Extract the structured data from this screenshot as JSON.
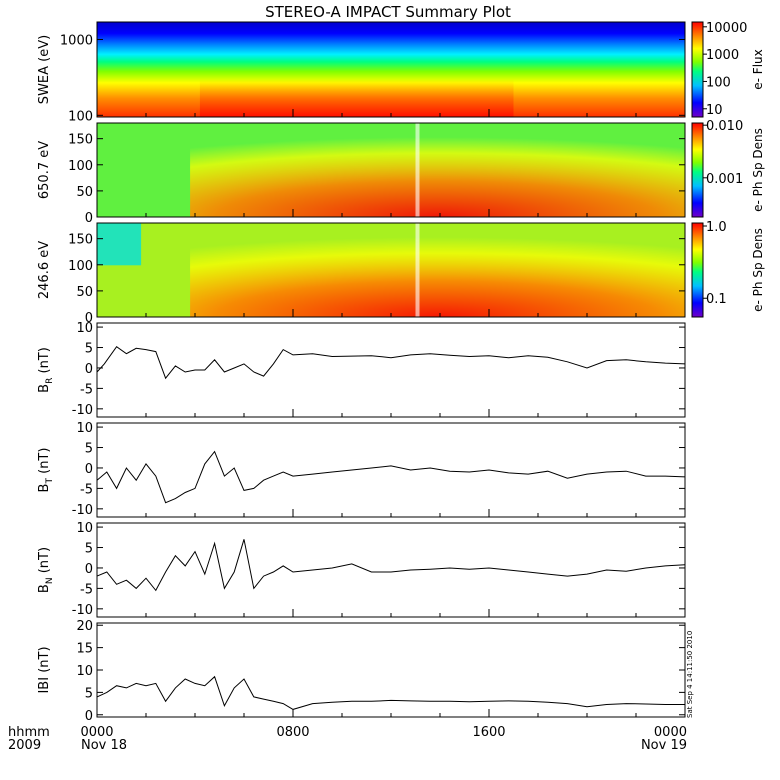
{
  "title": "STEREO-A IMPACT Summary Plot",
  "timestamp_text": "Sat Sep  4 14:11:50 2010",
  "time_axis": {
    "row1": [
      "hhmm",
      "0000",
      "0800",
      "1600",
      "0000"
    ],
    "row2": [
      "2009",
      "Nov 18",
      "Nov 19"
    ]
  },
  "colors": {
    "line": "#000000",
    "spectrogram_scale": [
      "#7000c8",
      "#0000ff",
      "#00c0ff",
      "#00ff80",
      "#80ff00",
      "#ffff00",
      "#ff8000",
      "#ff0000"
    ]
  },
  "chart_data": [
    {
      "type": "heatmap",
      "name": "swea",
      "ylabel": "SWEA (eV)",
      "yscale": "log",
      "ylim": [
        95,
        1700
      ],
      "yticks": [
        "1000",
        "100"
      ],
      "colorbar": {
        "label": "e- Flux",
        "scale": "log",
        "range": [
          5,
          15000
        ],
        "ticks": [
          "10000",
          "1000",
          "100",
          "10"
        ]
      }
    },
    {
      "type": "heatmap",
      "name": "pad_650",
      "ylabel": "650.7 eV",
      "ylim": [
        0,
        180
      ],
      "yticks": [
        "150",
        "100",
        "50",
        "0"
      ],
      "colorbar": {
        "label": "e- Ph Sp Dens",
        "scale": "log",
        "range": [
          0.00018,
          0.011
        ],
        "ticks": [
          "0.010",
          "0.001"
        ]
      }
    },
    {
      "type": "heatmap",
      "name": "pad_246",
      "ylabel": "246.6 eV",
      "ylim": [
        0,
        180
      ],
      "yticks": [
        "150",
        "100",
        "50",
        "0"
      ],
      "colorbar": {
        "label": "e- Ph Sp Dens",
        "scale": "log",
        "range": [
          0.055,
          1.1
        ],
        "ticks": [
          "1.0",
          "0.1"
        ]
      }
    },
    {
      "type": "line",
      "name": "br",
      "ylabel_main": "B",
      "ylabel_sub": "R",
      "ylabel_unit": "(nT)",
      "ylim": [
        -12,
        11
      ],
      "yticks": [
        "10",
        "5",
        "0",
        "-5",
        "-10"
      ],
      "x": [
        0,
        0.3,
        0.8,
        1.2,
        1.6,
        2.0,
        2.4,
        2.8,
        3.2,
        3.6,
        4.0,
        4.4,
        4.8,
        5.2,
        5.6,
        6.0,
        6.4,
        6.8,
        7.2,
        7.6,
        8.0,
        8.8,
        9.6,
        10.4,
        11.2,
        12.0,
        12.8,
        13.6,
        14.4,
        15.2,
        16.0,
        16.8,
        17.6,
        18.4,
        19.2,
        20.0,
        20.8,
        21.6,
        22.4,
        23.2,
        24.0
      ],
      "values": [
        -1,
        1,
        5.2,
        3.5,
        4.8,
        4.5,
        4,
        -2.5,
        0.5,
        -1,
        -0.5,
        -0.5,
        2,
        -1,
        0,
        1,
        -1,
        -2,
        1,
        4.5,
        3.2,
        3.5,
        2.8,
        2.9,
        3,
        2.5,
        3.2,
        3.5,
        3.1,
        2.8,
        3,
        2.5,
        3,
        2.6,
        1.5,
        0,
        1.8,
        2,
        1.5,
        1.2,
        1
      ]
    },
    {
      "type": "line",
      "name": "bt",
      "ylabel_main": "B",
      "ylabel_sub": "T",
      "ylabel_unit": "(nT)",
      "ylim": [
        -12,
        11
      ],
      "yticks": [
        "10",
        "5",
        "0",
        "-5",
        "-10"
      ],
      "x": [
        0,
        0.4,
        0.8,
        1.2,
        1.6,
        2.0,
        2.4,
        2.8,
        3.2,
        3.6,
        4.0,
        4.4,
        4.8,
        5.2,
        5.6,
        6.0,
        6.4,
        6.8,
        7.2,
        7.6,
        8.0,
        8.8,
        9.6,
        10.4,
        11.2,
        12.0,
        12.8,
        13.6,
        14.4,
        15.2,
        16.0,
        16.8,
        17.6,
        18.4,
        19.2,
        20.0,
        20.8,
        21.6,
        22.4,
        23.2,
        24.0
      ],
      "values": [
        -3,
        -1,
        -5,
        0,
        -3,
        1,
        -2,
        -8.5,
        -7.5,
        -6,
        -5,
        1,
        4,
        -2,
        0,
        -5.5,
        -5,
        -3,
        -2,
        -1,
        -2,
        -1.5,
        -1,
        -0.5,
        0,
        0.5,
        -0.5,
        0,
        -0.8,
        -1,
        -0.5,
        -1.2,
        -1.5,
        -0.8,
        -2.5,
        -1.5,
        -1,
        -0.8,
        -2,
        -2,
        -2.2
      ]
    },
    {
      "type": "line",
      "name": "bn",
      "ylabel_main": "B",
      "ylabel_sub": "N",
      "ylabel_unit": "(nT)",
      "ylim": [
        -12,
        11
      ],
      "yticks": [
        "10",
        "5",
        "0",
        "-5",
        "-10"
      ],
      "x": [
        0,
        0.4,
        0.8,
        1.2,
        1.6,
        2.0,
        2.4,
        2.8,
        3.2,
        3.6,
        4.0,
        4.4,
        4.8,
        5.2,
        5.6,
        6.0,
        6.4,
        6.8,
        7.2,
        7.6,
        8.0,
        8.8,
        9.6,
        10.4,
        11.2,
        12.0,
        12.8,
        13.6,
        14.4,
        15.2,
        16.0,
        16.8,
        17.6,
        18.4,
        19.2,
        20.0,
        20.8,
        21.6,
        22.4,
        23.2,
        24.0
      ],
      "values": [
        -2,
        -1,
        -4,
        -3,
        -5,
        -2.5,
        -5.5,
        -1,
        3,
        0.5,
        4,
        -1.5,
        6,
        -5,
        -1,
        7,
        -5,
        -2,
        -1,
        0.5,
        -1,
        -0.5,
        0,
        1,
        -1,
        -1,
        -0.5,
        -0.3,
        0,
        -0.3,
        0,
        -0.5,
        -1,
        -1.5,
        -2,
        -1.5,
        -0.5,
        -0.8,
        0,
        0.5,
        0.8
      ]
    },
    {
      "type": "line",
      "name": "bmag",
      "ylabel_main": "IBI",
      "ylabel_unit": "(nT)",
      "ylim": [
        -0.5,
        20.5
      ],
      "yticks": [
        "20",
        "15",
        "10",
        "5",
        "0"
      ],
      "x": [
        0,
        0.4,
        0.8,
        1.2,
        1.6,
        2.0,
        2.4,
        2.8,
        3.2,
        3.6,
        4.0,
        4.4,
        4.8,
        5.2,
        5.6,
        6.0,
        6.4,
        6.8,
        7.2,
        7.6,
        8.0,
        8.8,
        9.6,
        10.4,
        11.2,
        12.0,
        12.8,
        13.6,
        14.4,
        15.2,
        16.0,
        16.8,
        17.6,
        18.4,
        19.2,
        20.0,
        20.8,
        21.6,
        22.4,
        23.2,
        24.0
      ],
      "values": [
        4,
        5,
        6.5,
        6,
        7,
        6.5,
        7,
        3,
        6,
        8,
        7,
        6.5,
        8.5,
        2,
        6,
        8,
        4,
        3.5,
        3,
        2.5,
        1.2,
        2.5,
        2.8,
        3,
        3,
        3.2,
        3.1,
        3,
        3,
        2.9,
        3,
        3.1,
        3,
        2.8,
        2.5,
        1.8,
        2.3,
        2.5,
        2.4,
        2.3,
        2.3
      ]
    }
  ]
}
